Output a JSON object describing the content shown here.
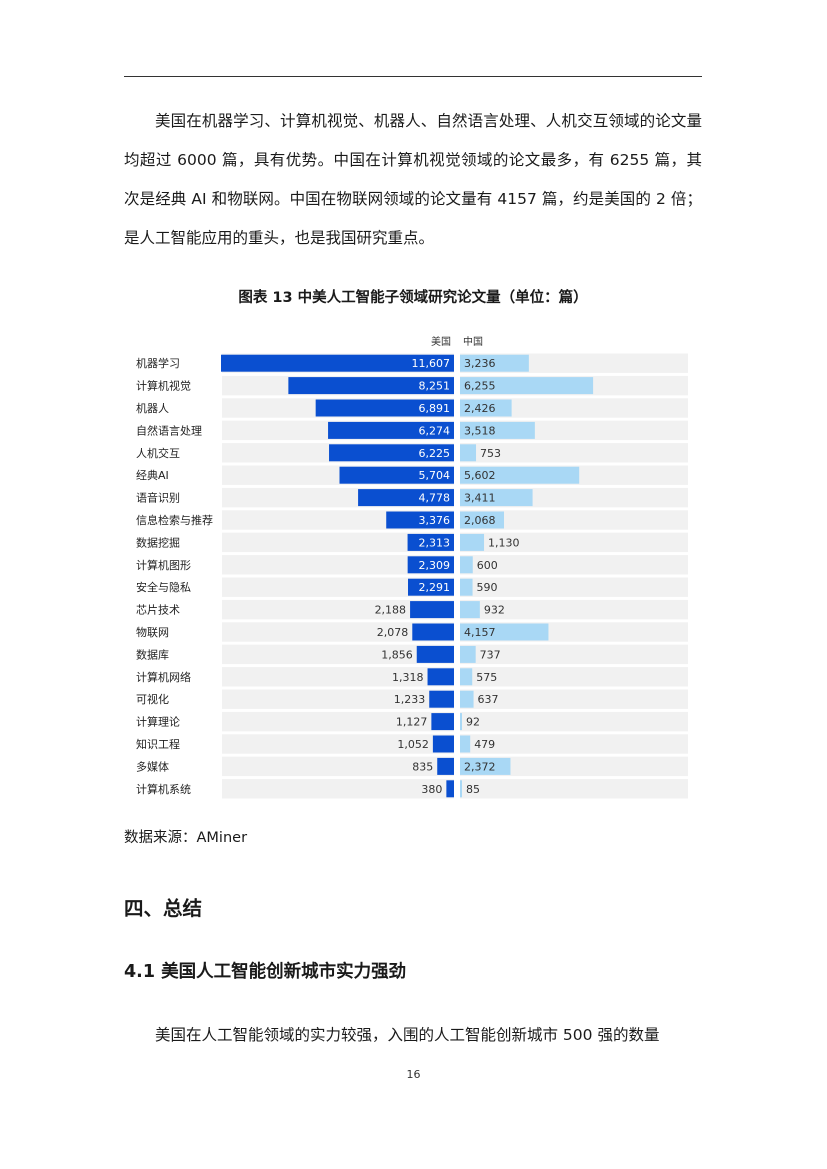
{
  "body_paragraph_1": "美国在机器学习、计算机视觉、机器人、自然语言处理、人机交互领域的论文量均超过 6000 篇，具有优势。中国在计算机视觉领域的论文最多，有 6255 篇，其次是经典 AI 和物联网。中国在物联网领域的论文量有 4157 篇，约是美国的 2 倍；是人工智能应用的重头，也是我国研究重点。",
  "figure_title": "图表 13 中美人工智能子领域研究论文量（单位：篇）",
  "source_note": "数据来源：AMiner",
  "section_heading": "四、总结",
  "subsection_heading": "4.1 美国人工智能创新城市实力强劲",
  "body_paragraph_2": "美国在人工智能领域的实力较强，入围的人工智能创新城市 500 强的数量",
  "page_number": "16",
  "colors": {
    "us_bar": "#0a4fd0",
    "cn_bar": "#a9d8f5",
    "row_bg": "#f1f1f1",
    "rule": "#333333"
  },
  "chart_data": {
    "type": "bar",
    "orientation": "horizontal-butterfly",
    "title": "图表 13 中美人工智能子领域研究论文量（单位：篇）",
    "xlabel": "",
    "ylabel": "",
    "categories": [
      "机器学习",
      "计算机视觉",
      "机器人",
      "自然语言处理",
      "人机交互",
      "经典AI",
      "语音识别",
      "信息检索与推荐",
      "数据挖掘",
      "计算机图形",
      "安全与隐私",
      "芯片技术",
      "物联网",
      "数据库",
      "计算机网络",
      "可视化",
      "计算理论",
      "知识工程",
      "多媒体",
      "计算机系统"
    ],
    "series": [
      {
        "name": "美国",
        "color": "#0a4fd0",
        "values": [
          11607,
          8251,
          6891,
          6274,
          6225,
          5704,
          4778,
          3376,
          2313,
          2309,
          2291,
          2188,
          2078,
          1856,
          1318,
          1233,
          1127,
          1052,
          835,
          380
        ]
      },
      {
        "name": "中国",
        "color": "#a9d8f5",
        "values": [
          3236,
          6255,
          2426,
          3518,
          753,
          5602,
          3411,
          2068,
          1130,
          600,
          590,
          932,
          4157,
          737,
          575,
          637,
          92,
          479,
          2372,
          85
        ]
      }
    ],
    "xlim": [
      0,
      11607
    ],
    "grid": false,
    "legend": "top-center"
  }
}
